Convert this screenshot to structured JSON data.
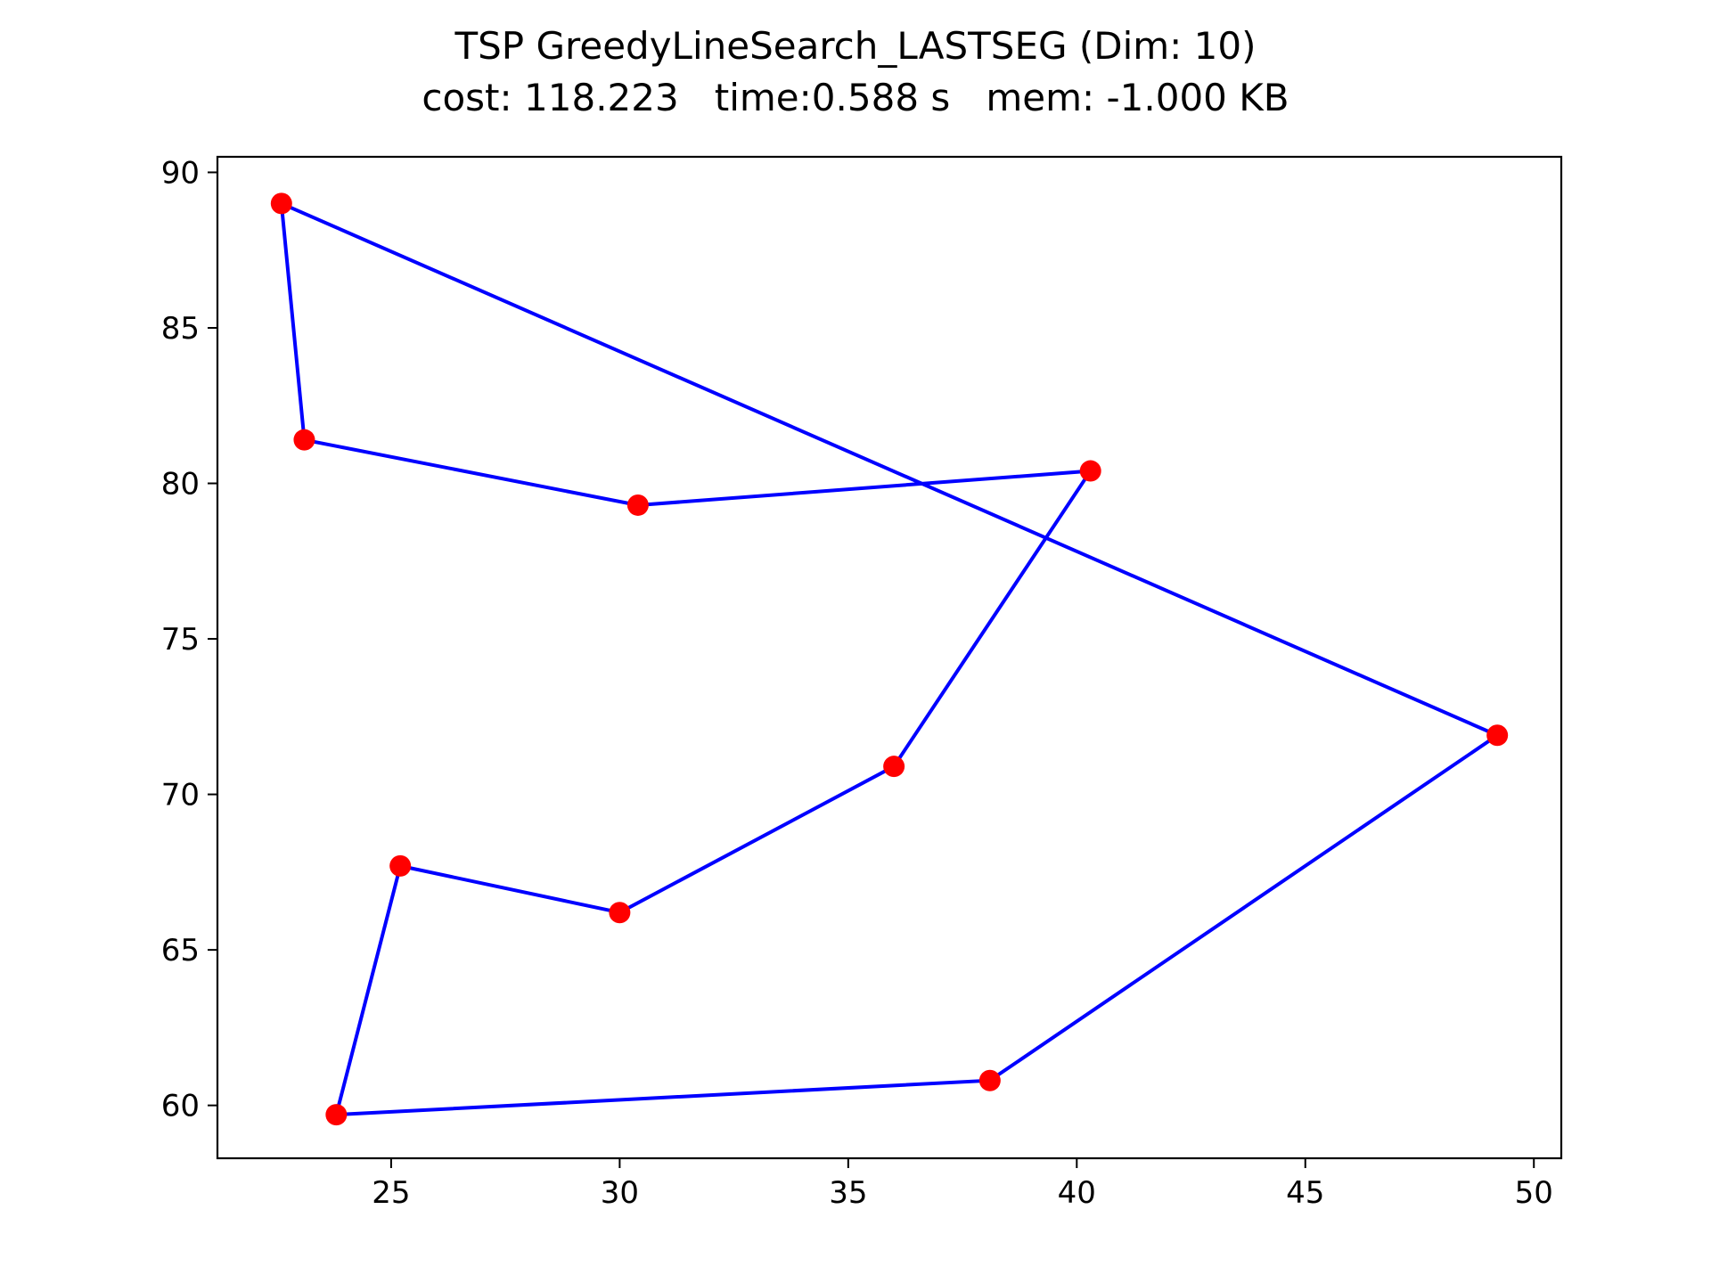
{
  "chart_data": {
    "type": "scatter",
    "title": "TSP GreedyLineSearch_LASTSEG (Dim: 10)",
    "subtitle": "cost: 118.223   time:0.588 s   mem: -1.000 KB",
    "xlabel": "",
    "ylabel": "",
    "xlim": [
      21.2,
      50.6
    ],
    "ylim": [
      58.3,
      90.5
    ],
    "x_ticks": [
      25,
      30,
      35,
      40,
      45,
      50
    ],
    "y_ticks": [
      60,
      65,
      70,
      75,
      80,
      85,
      90
    ],
    "grid": false,
    "points": [
      {
        "x": 22.6,
        "y": 89.0
      },
      {
        "x": 23.1,
        "y": 81.4
      },
      {
        "x": 30.4,
        "y": 79.3
      },
      {
        "x": 40.3,
        "y": 80.4
      },
      {
        "x": 36.0,
        "y": 70.9
      },
      {
        "x": 30.0,
        "y": 66.2
      },
      {
        "x": 25.2,
        "y": 67.7
      },
      {
        "x": 23.8,
        "y": 59.7
      },
      {
        "x": 38.1,
        "y": 60.8
      },
      {
        "x": 49.2,
        "y": 71.9
      }
    ],
    "tour": [
      {
        "x": 22.6,
        "y": 89.0
      },
      {
        "x": 23.1,
        "y": 81.4
      },
      {
        "x": 30.4,
        "y": 79.3
      },
      {
        "x": 40.3,
        "y": 80.4
      },
      {
        "x": 36.0,
        "y": 70.9
      },
      {
        "x": 30.0,
        "y": 66.2
      },
      {
        "x": 25.2,
        "y": 67.7
      },
      {
        "x": 23.8,
        "y": 59.7
      },
      {
        "x": 38.1,
        "y": 60.8
      },
      {
        "x": 49.2,
        "y": 71.9
      },
      {
        "x": 22.6,
        "y": 89.0
      }
    ],
    "colors": {
      "points": "#ff0000",
      "tour": "#0000ff",
      "axes": "#000000",
      "background": "#ffffff"
    }
  }
}
